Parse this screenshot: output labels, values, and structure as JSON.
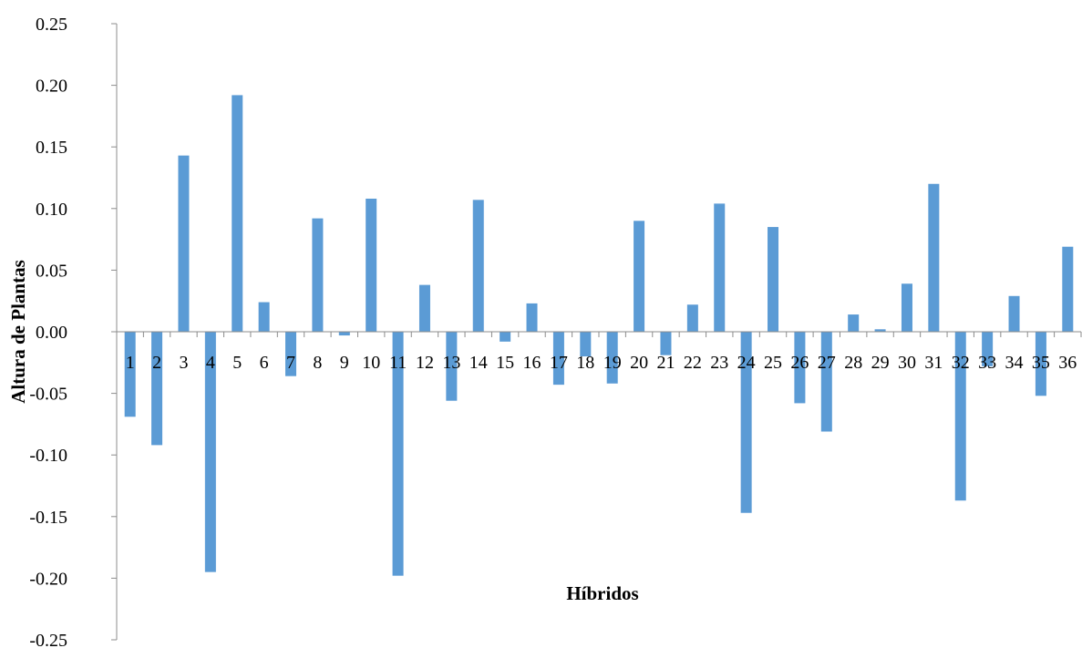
{
  "chart_data": {
    "type": "bar",
    "title": "",
    "xlabel": "Híbridos",
    "ylabel": "Altura de Plantas",
    "ylim": [
      -0.25,
      0.25
    ],
    "yticks": [
      "0.25",
      "0.20",
      "0.15",
      "0.10",
      "0.05",
      "0.00",
      "-0.05",
      "-0.10",
      "-0.15",
      "-0.20",
      "-0.25"
    ],
    "categories": [
      "1",
      "2",
      "3",
      "4",
      "5",
      "6",
      "7",
      "8",
      "9",
      "10",
      "11",
      "12",
      "13",
      "14",
      "15",
      "16",
      "17",
      "18",
      "19",
      "20",
      "21",
      "22",
      "23",
      "24",
      "25",
      "26",
      "27",
      "28",
      "29",
      "30",
      "31",
      "32",
      "33",
      "34",
      "35",
      "36"
    ],
    "values": [
      -0.069,
      -0.092,
      0.143,
      -0.195,
      0.192,
      0.024,
      -0.036,
      0.092,
      -0.003,
      0.108,
      -0.198,
      0.038,
      -0.056,
      0.107,
      -0.008,
      0.023,
      -0.043,
      -0.02,
      -0.042,
      0.09,
      -0.019,
      0.022,
      0.104,
      -0.147,
      0.085,
      -0.058,
      -0.081,
      0.014,
      0.002,
      0.039,
      0.12,
      -0.137,
      -0.028,
      0.029,
      -0.052,
      0.069
    ],
    "grid": false,
    "legend": "none",
    "colors": {
      "bar": "#5b9bd5",
      "axis": "#8c8c8c"
    }
  }
}
